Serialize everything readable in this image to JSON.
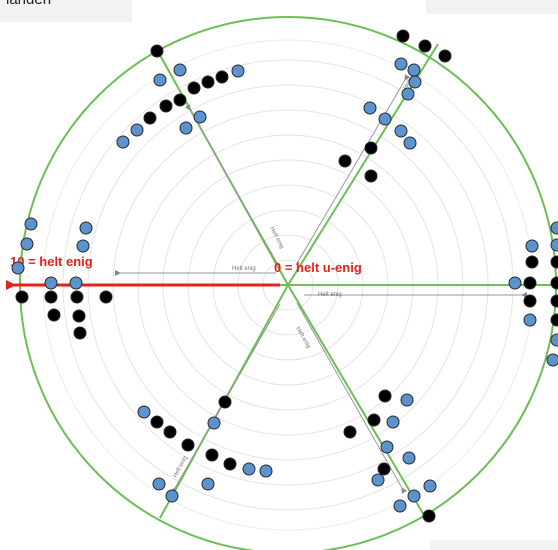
{
  "header_left_text": "landen",
  "label_max": "10 = helt enig",
  "label_min": "0 = helt u-enig",
  "axis_label": "Helt enig",
  "colors": {
    "circle": "#6cbf55",
    "spoke": "#6cbf55",
    "rings": "#e4e4e4",
    "red_arrow": "#e8201a",
    "blue_dot": "#5b93cf",
    "black_dot": "#000000"
  }
}
